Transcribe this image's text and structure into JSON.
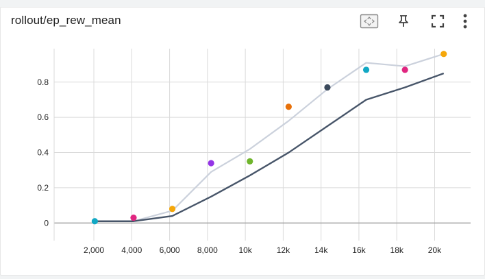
{
  "header": {
    "title": "rollout/ep_rew_mean"
  },
  "toolbar": {
    "icons": [
      "fit-domain-icon",
      "pin-icon",
      "fullscreen-icon",
      "more-vert-icon"
    ]
  },
  "colors": {
    "smoothed_line": "#475569",
    "raw_line": "#cbd1dc",
    "grid": "#dadada",
    "zero_line": "#9e9e9e"
  },
  "chart_data": {
    "type": "line",
    "x_ticks": [
      {
        "value": 2000,
        "label": "2,000"
      },
      {
        "value": 4000,
        "label": "4,000"
      },
      {
        "value": 6000,
        "label": "6,000"
      },
      {
        "value": 8000,
        "label": "8,000"
      },
      {
        "value": 10000,
        "label": "10k"
      },
      {
        "value": 12000,
        "label": "12k"
      },
      {
        "value": 14000,
        "label": "14k"
      },
      {
        "value": 16000,
        "label": "16k"
      },
      {
        "value": 18000,
        "label": "18k"
      },
      {
        "value": 20000,
        "label": "20k"
      }
    ],
    "y_ticks": [
      {
        "value": 0,
        "label": "0"
      },
      {
        "value": 0.2,
        "label": "0.2"
      },
      {
        "value": 0.4,
        "label": "0.4"
      },
      {
        "value": 0.6,
        "label": "0.6"
      },
      {
        "value": 0.8,
        "label": "0.8"
      }
    ],
    "xlim": [
      -100,
      21900
    ],
    "ylim": [
      -0.1,
      0.99
    ],
    "grid": true,
    "series": [
      {
        "x": [
          2048,
          4096,
          6144,
          8192,
          10240,
          12288,
          14336,
          16384,
          18432,
          20480
        ],
        "raw": [
          0.01,
          0.01,
          0.07,
          0.29,
          0.42,
          0.58,
          0.76,
          0.91,
          0.89,
          0.96
        ],
        "smoothed": [
          0.01,
          0.01,
          0.04,
          0.15,
          0.27,
          0.4,
          0.55,
          0.7,
          0.77,
          0.85
        ]
      }
    ],
    "points": [
      {
        "x": 2048,
        "y": 0.01,
        "color": "#12a8c4"
      },
      {
        "x": 4096,
        "y": 0.03,
        "color": "#e02680"
      },
      {
        "x": 6144,
        "y": 0.08,
        "color": "#f5a70a"
      },
      {
        "x": 8192,
        "y": 0.34,
        "color": "#9434e6"
      },
      {
        "x": 10240,
        "y": 0.35,
        "color": "#6fb52c"
      },
      {
        "x": 12288,
        "y": 0.66,
        "color": "#e8710a"
      },
      {
        "x": 14336,
        "y": 0.77,
        "color": "#3c4a5c"
      },
      {
        "x": 16384,
        "y": 0.87,
        "color": "#12a8c4"
      },
      {
        "x": 18432,
        "y": 0.87,
        "color": "#e02680"
      },
      {
        "x": 20480,
        "y": 0.96,
        "color": "#f5a70a"
      }
    ]
  }
}
